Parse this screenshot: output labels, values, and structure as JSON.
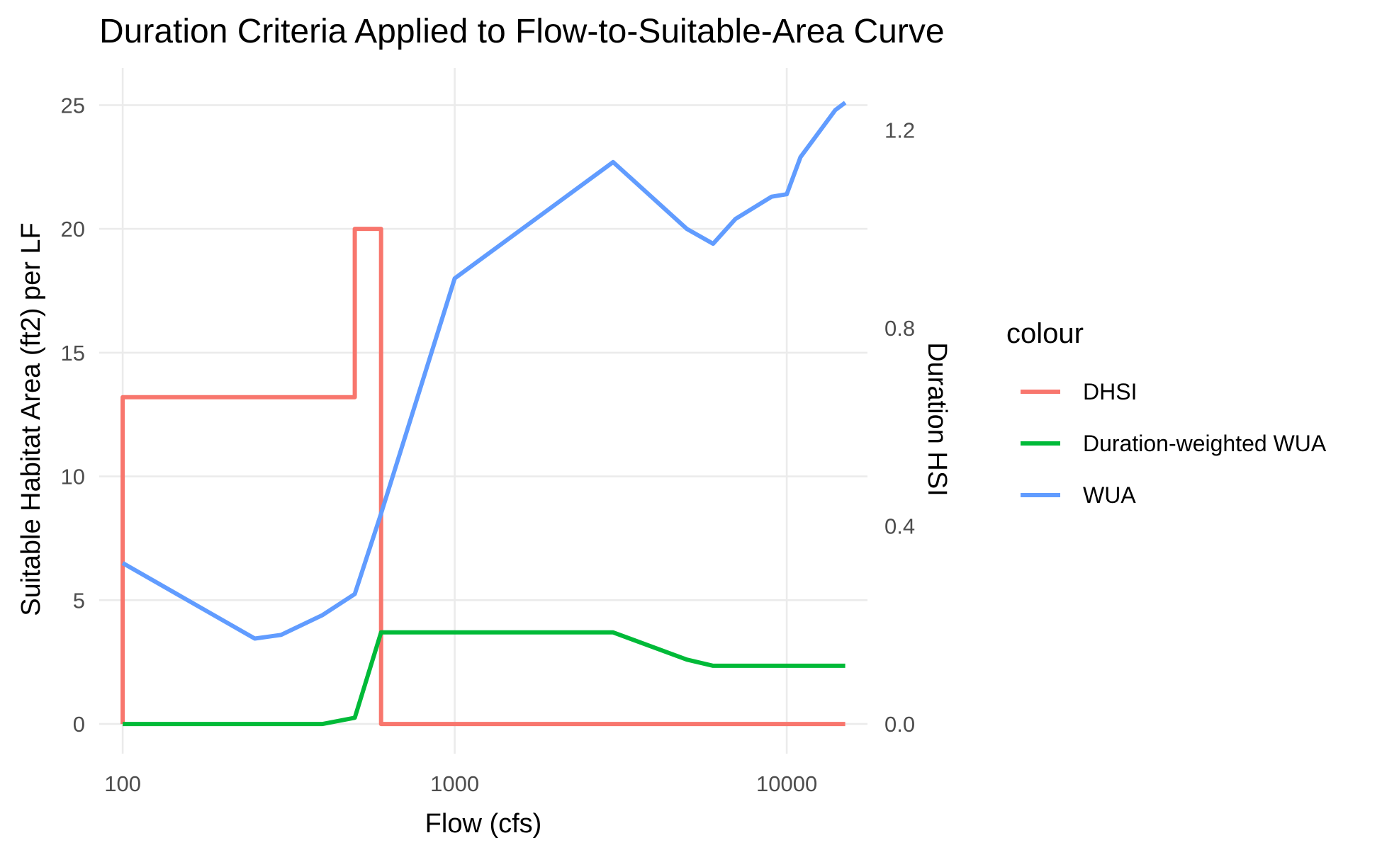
{
  "chart_data": {
    "type": "line",
    "title": "Duration Criteria Applied to Flow-to-Suitable-Area Curve",
    "xlabel": "Flow (cfs)",
    "ylabel": "Suitable Habitat Area (ft2) per LF",
    "y2label": "Duration HSI",
    "x_scale": "log10",
    "xlim": [
      85,
      17500
    ],
    "ylim": [
      -1.2,
      26.5
    ],
    "y2_scale_factor": 20,
    "x_ticks": [
      100,
      1000,
      10000
    ],
    "x_tick_labels": [
      "100",
      "1000",
      "10000"
    ],
    "y_ticks": [
      0,
      5,
      10,
      15,
      20,
      25
    ],
    "y_tick_labels": [
      "0",
      "5",
      "10",
      "15",
      "20",
      "25"
    ],
    "y2_ticks": [
      0.0,
      0.4,
      0.8,
      1.2
    ],
    "y2_tick_labels": [
      "0.0",
      "0.4",
      "0.8",
      "1.2"
    ],
    "grid": true,
    "legend": {
      "title": "colour",
      "placement": "right"
    },
    "series": [
      {
        "name": "DHSI",
        "color": "#F8766D",
        "x": [
          100,
          100,
          500,
          500,
          600,
          600,
          15000
        ],
        "y": [
          0,
          13.2,
          13.2,
          20,
          20,
          0,
          0
        ]
      },
      {
        "name": "Duration-weighted WUA",
        "color": "#00BA38",
        "x": [
          100,
          400,
          500,
          600,
          3000,
          5000,
          6000,
          15000
        ],
        "y": [
          0,
          0,
          0.25,
          3.7,
          3.7,
          2.6,
          2.35,
          2.35
        ]
      },
      {
        "name": "WUA",
        "color": "#619CFF",
        "x": [
          100,
          250,
          300,
          400,
          500,
          600,
          1000,
          3000,
          5000,
          6000,
          7000,
          9000,
          10000,
          11000,
          14000,
          15000
        ],
        "y": [
          6.5,
          3.45,
          3.6,
          4.4,
          5.25,
          8.5,
          18,
          22.7,
          20,
          19.4,
          20.4,
          21.3,
          21.4,
          22.9,
          24.8,
          25.1
        ]
      }
    ]
  }
}
